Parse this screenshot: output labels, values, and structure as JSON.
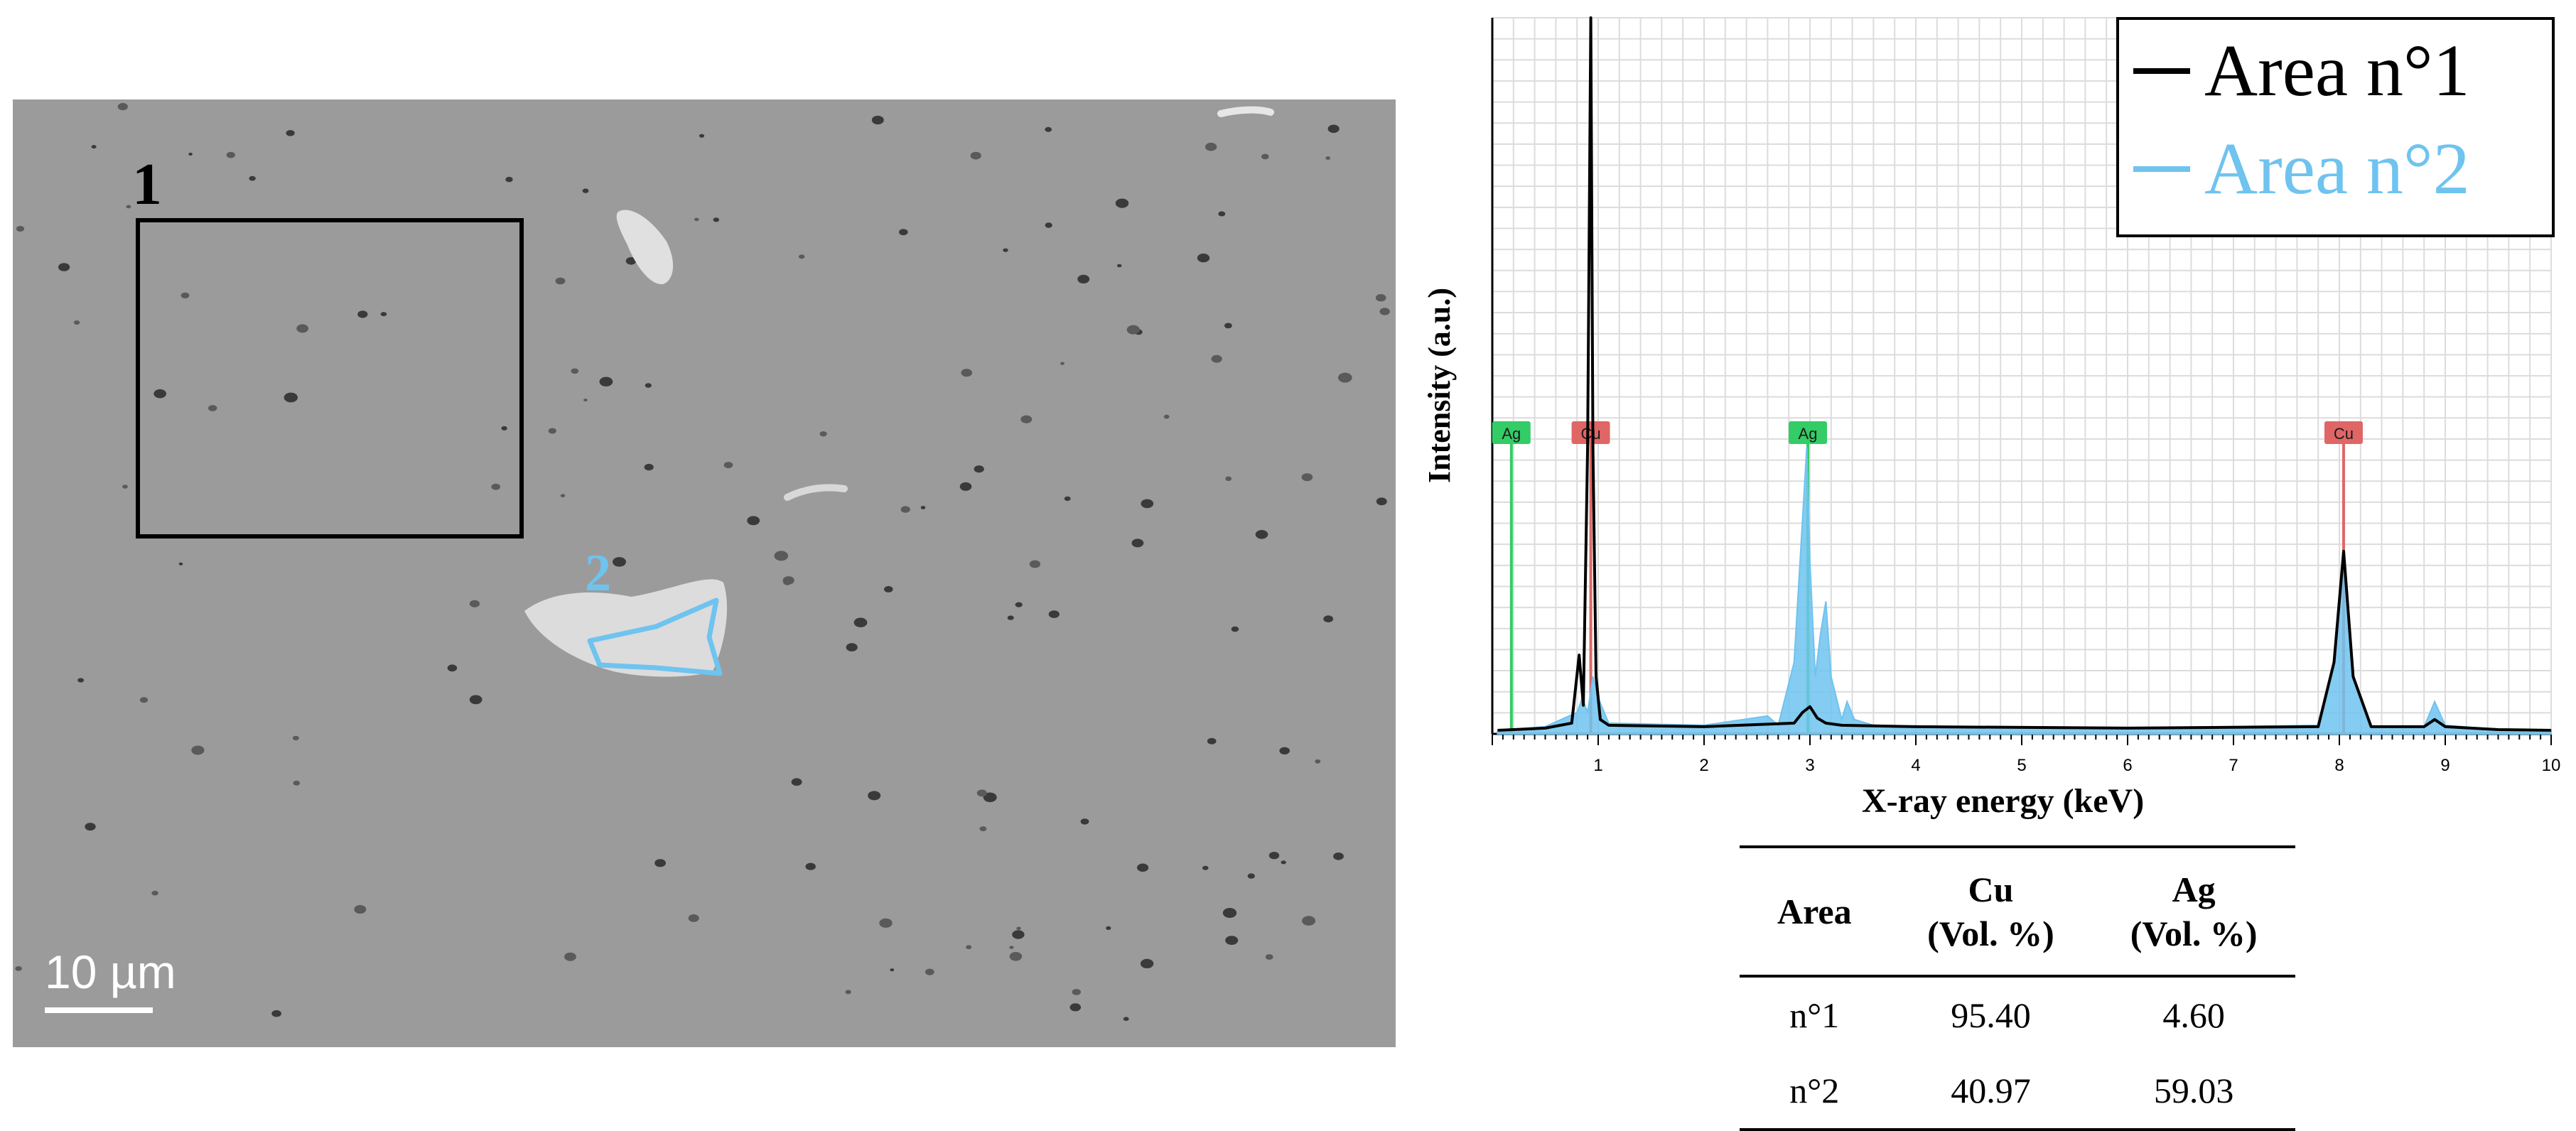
{
  "sem_image": {
    "area_labels": [
      "1",
      "2"
    ],
    "scale_bar_label": "10 µm",
    "colors": {
      "area1": "#000000",
      "area2": "#6fc3ef",
      "background": "#9b9b9b"
    }
  },
  "chart_data": [
    {
      "type": "line",
      "xlabel": "X-ray energy (keV)",
      "ylabel": "Intensity (a.u.)",
      "xlim": [
        0,
        10
      ],
      "x_ticks": [
        "1",
        "2",
        "3",
        "4",
        "5",
        "6",
        "7",
        "8",
        "9",
        "10"
      ],
      "grid": true,
      "legend_position": "top-right",
      "series": [
        {
          "name": "Area n°1",
          "color": "#000000",
          "x": [
            0.05,
            0.5,
            0.75,
            0.82,
            0.86,
            0.9,
            0.93,
            0.95,
            0.98,
            1.02,
            1.1,
            2.0,
            2.85,
            2.93,
            3.0,
            3.07,
            3.15,
            3.3,
            4.0,
            6.0,
            7.8,
            7.95,
            8.04,
            8.13,
            8.3,
            8.8,
            8.9,
            9.0,
            9.5,
            10.0
          ],
          "y": [
            0.5,
            0.8,
            1.5,
            11.0,
            4.0,
            40.0,
            100.0,
            40.0,
            8.0,
            2.0,
            1.2,
            1.0,
            1.5,
            3.0,
            3.8,
            2.2,
            1.5,
            1.2,
            1.0,
            0.8,
            1.0,
            10.0,
            25.5,
            8.0,
            1.0,
            1.0,
            2.0,
            1.0,
            0.6,
            0.5
          ]
        },
        {
          "name": "Area n°2",
          "color": "#6fc3ef",
          "x": [
            0.05,
            0.5,
            0.8,
            0.85,
            0.9,
            0.95,
            1.0,
            1.1,
            2.0,
            2.6,
            2.7,
            2.85,
            2.93,
            2.97,
            3.0,
            3.05,
            3.1,
            3.15,
            3.2,
            3.3,
            3.35,
            3.42,
            3.6,
            4.0,
            6.0,
            7.8,
            7.95,
            8.04,
            8.13,
            8.3,
            8.8,
            8.9,
            9.0,
            9.5,
            10.0
          ],
          "y": [
            0.5,
            1.0,
            3.0,
            5.0,
            3.0,
            8.0,
            5.0,
            1.5,
            1.2,
            2.5,
            1.2,
            10.0,
            30.0,
            40.0,
            24.0,
            8.0,
            14.0,
            18.5,
            8.0,
            2.0,
            4.5,
            2.0,
            1.2,
            1.0,
            0.8,
            1.2,
            10.0,
            24.5,
            8.0,
            1.0,
            1.0,
            4.5,
            1.2,
            0.6,
            0.5
          ]
        }
      ],
      "annotations": [
        {
          "text": "Ag",
          "x": 0.18,
          "color": "#33cc66"
        },
        {
          "text": "Cu",
          "x": 0.93,
          "color": "#e06666"
        },
        {
          "text": "Ag",
          "x": 2.98,
          "color": "#33cc66"
        },
        {
          "text": "Cu",
          "x": 8.04,
          "color": "#e06666"
        }
      ]
    },
    {
      "type": "table",
      "columns": [
        "Area",
        "Cu\n(Vol. %)",
        "Ag\n(Vol. %)"
      ],
      "rows": [
        [
          "n°1",
          "95.40",
          "4.60"
        ],
        [
          "n°2",
          "40.97",
          "59.03"
        ]
      ]
    }
  ]
}
